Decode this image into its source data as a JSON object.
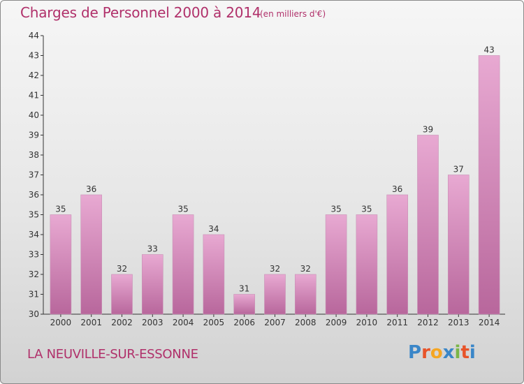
{
  "header": {
    "title": "Charges de Personnel 2000 à 2014",
    "unit": "(en milliers d'€)"
  },
  "footer": {
    "commune": "LA NEUVILLE-SUR-ESSONNE",
    "brand": "Proxiti",
    "brand_colors": [
      "#3a86c8",
      "#e8542a",
      "#f5a623",
      "#3a86c8",
      "#7ab648",
      "#e8542a",
      "#3a86c8"
    ]
  },
  "colors": {
    "bar_top": "#e8a9d2",
    "bar_bottom": "#b8679c",
    "text": "#b0306a",
    "axis": "#333333"
  },
  "chart_data": {
    "type": "bar",
    "title": "Charges de Personnel 2000 à 2014",
    "subtitle": "(en milliers d'€)",
    "categories": [
      "2000",
      "2001",
      "2002",
      "2003",
      "2004",
      "2005",
      "2006",
      "2007",
      "2008",
      "2009",
      "2010",
      "2011",
      "2012",
      "2013",
      "2014"
    ],
    "values": [
      35,
      36,
      32,
      33,
      35,
      34,
      31,
      32,
      32,
      35,
      35,
      36,
      39,
      37,
      43
    ],
    "ylim": [
      30,
      44
    ],
    "yticks": [
      30,
      31,
      32,
      33,
      34,
      35,
      36,
      37,
      38,
      39,
      40,
      41,
      42,
      43,
      44
    ],
    "grid": false,
    "data_labels": true
  }
}
